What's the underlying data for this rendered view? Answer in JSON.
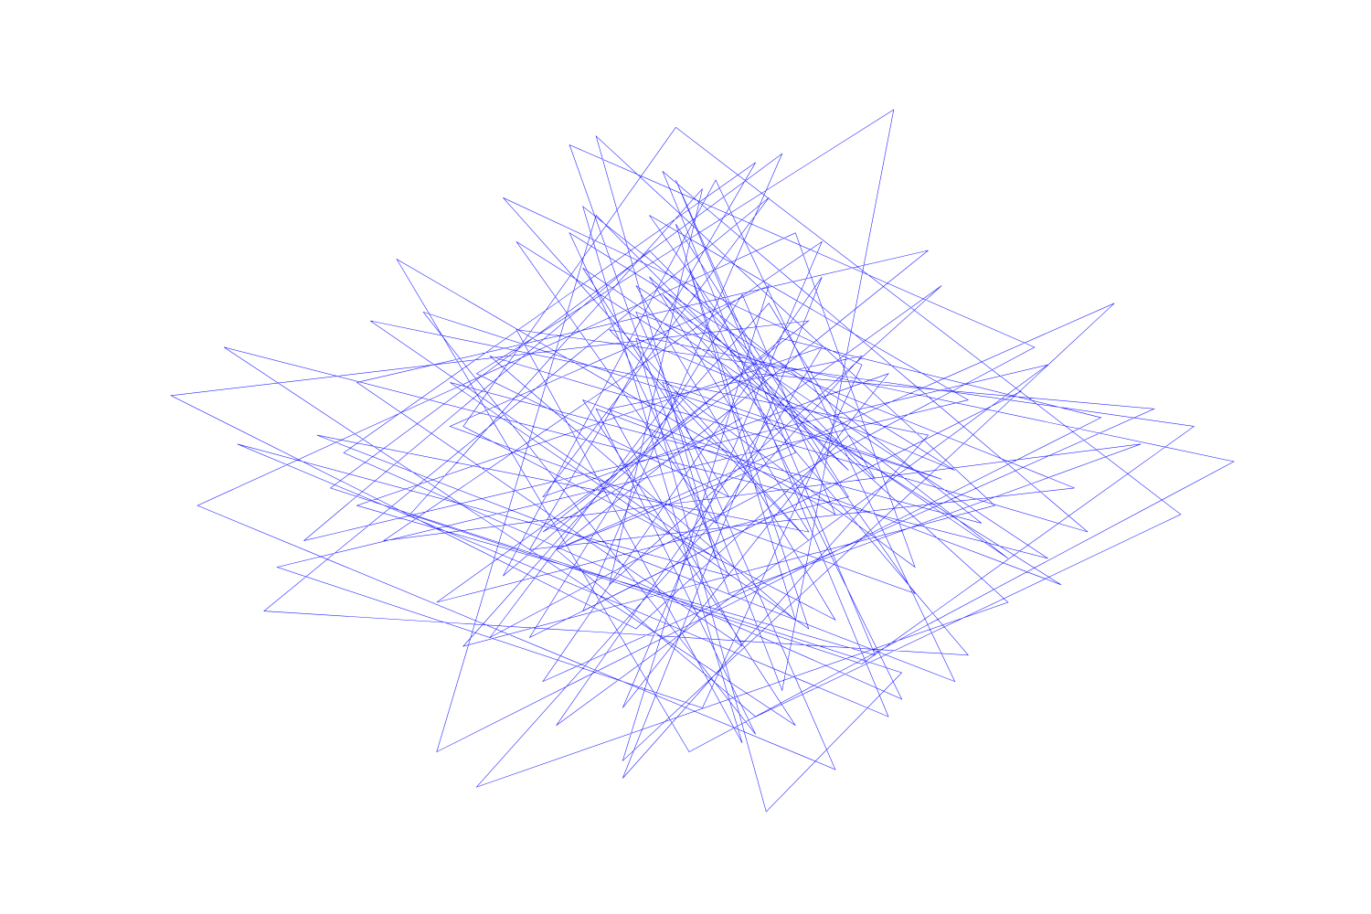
{
  "chart_data": {
    "type": "line",
    "color": "#0000ff",
    "xlim": [
      -4,
      4
    ],
    "ylim": [
      -4,
      4
    ],
    "series": [
      {
        "color": "#0000ff",
        "x": [
          0.3,
          -1.2,
          0.8,
          -4.0,
          -0.5,
          1.1,
          2.3,
          -0.9,
          0.2,
          -1.7,
          1.44,
          0.6,
          -0.3,
          1.8,
          -2.1,
          0.4,
          -0.8,
          2.7,
          -1.4,
          0.1,
          0.9,
          -2.6,
          1.3,
          -0.2,
          0.7,
          -1.1,
          3.1,
          -0.6,
          0.5,
          -1.9,
          1.6,
          -0.4,
          2.0,
          -3.2,
          0.0,
          1.2,
          -1.5,
          0.8,
          -0.7,
          4.0,
          -0.1,
          -2.3,
          1.0,
          0.3,
          -1.3,
          2.4,
          -0.9,
          0.6,
          -2.8,
          1.5,
          0.48,
          -0.5,
          1.9,
          -1.0,
          0.2,
          -3.5,
          1.4,
          -0.3,
          2.9,
          -1.6,
          0.7,
          -0.2,
          1.1,
          -2.0,
          0.4,
          3.4,
          -1.2,
          0.9,
          -0.6,
          1.7,
          -2.5,
          0.1,
          -0.8,
          2.2,
          -1.8,
          0.5,
          1.3,
          -0.4,
          -3.0,
          2.6,
          -1.1,
          0.6,
          1.8,
          -0.7,
          0.0,
          -2.2,
          1.2,
          3.7,
          -1.4,
          0.3,
          -0.9,
          2.1,
          -1.9,
          0.8,
          -0.1,
          1.5,
          -2.7,
          0.4,
          -1.3,
          2.8,
          -0.5,
          1.0,
          -3.8,
          0.7,
          1.6,
          -0.2,
          -1.6,
          2.5,
          -1.0,
          0.2,
          3.3,
          -2.4,
          0.9,
          -0.6,
          1.4,
          -1.2,
          0.5,
          -3.3,
          2.0,
          -0.3,
          1.1,
          -0.8,
          -2.0,
          3.0,
          0.6,
          -1.5,
          0.1,
          1.9,
          -2.9,
          0.8,
          -0.4,
          2.3,
          -1.7,
          1.2,
          -0.7,
          0.3,
          -2.6,
          1.7,
          -1.1,
          0.4,
          3.6,
          -0.2,
          -1.8,
          1.0,
          -0.5,
          2.6,
          -3.6,
          0.7,
          -0.9,
          0.2
        ],
        "values": [
          0.5,
          -0.8,
          1.6,
          0.75,
          -1.9,
          0.3,
          -1.1,
          2.2,
          -0.4,
          1.0,
          4.0,
          -2.6,
          0.9,
          -0.2,
          1.7,
          -3.1,
          0.6,
          -1.4,
          2.5,
          -0.7,
          1.3,
          -0.5,
          -2.2,
          3.2,
          0.1,
          -1.0,
          1.8,
          -3.4,
          2.0,
          0.4,
          -1.5,
          2.8,
          0.7,
          -1.2,
          -2.8,
          1.1,
          3.0,
          -0.9,
          1.5,
          0.0,
          -3.3,
          2.3,
          -0.6,
          1.9,
          -2.0,
          0.8,
          -1.7,
          3.5,
          -0.3,
          -2.4,
          -3.98,
          1.4,
          -0.1,
          2.6,
          -1.3,
          0.2,
          -2.9,
          3.3,
          -0.8,
          1.2,
          -1.8,
          2.7,
          -0.4,
          -1.6,
          1.0,
          0.6,
          -2.5,
          2.1,
          -3.6,
          0.3,
          1.6,
          -1.1,
          3.7,
          -0.5,
          -2.1,
          1.8,
          -0.2,
          2.4,
          -0.9,
          1.1,
          -3.0,
          0.7,
          2.0,
          -1.4,
          3.1,
          -0.6,
          -2.3,
          0.4,
          1.5,
          -3.2,
          2.9,
          -0.7,
          0.9,
          -1.9,
          2.2,
          -2.7,
          0.1,
          3.4,
          -1.0,
          -0.3,
          1.7,
          -3.5,
          -0.5,
          2.6,
          -1.2,
          0.8,
          -2.0,
          1.3,
          3.6,
          -1.5,
          0.2,
          -0.9,
          2.5,
          -2.8,
          1.0,
          -0.4,
          3.0,
          -1.7,
          -2.2,
          1.9,
          -0.1,
          2.8,
          -3.3,
          0.5,
          1.4,
          -1.3,
          3.2,
          -2.5,
          0.3,
          -0.8,
          2.1,
          -1.6,
          -3.7,
          1.2,
          0.6,
          -2.1,
          0.9,
          2.4,
          -1.0,
          -2.9,
          -0.6,
          3.8,
          0.4,
          -1.8,
          2.0,
          -1.1,
          1.3,
          -3.0,
          0.7,
          0.1
        ]
      }
    ]
  }
}
